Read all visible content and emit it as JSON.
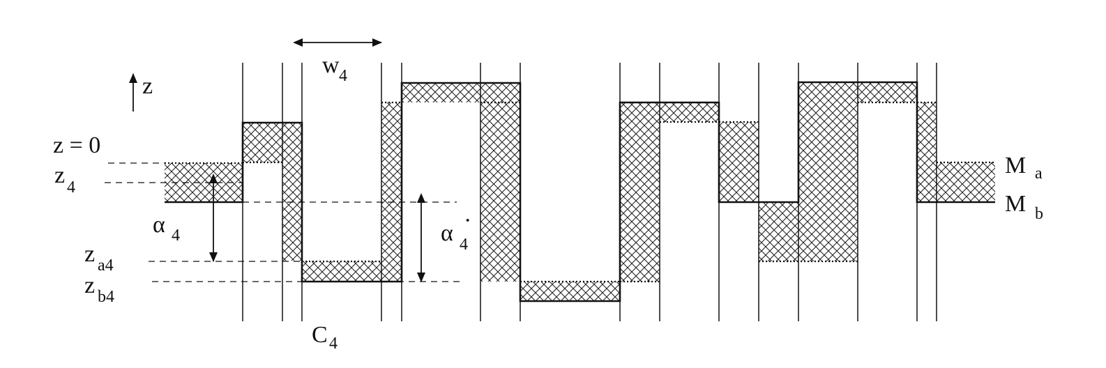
{
  "labels": {
    "z_axis": "z",
    "z_zero": "z = 0",
    "z4": "z",
    "z4_sub": "4",
    "alpha4": "α",
    "alpha4_sub": "4",
    "za4": "z",
    "za4_sub": "a4",
    "zb4": "z",
    "zb4_sub": "b4",
    "c4": "C",
    "c4_sub": "4",
    "w4": "w",
    "w4_sub": "4",
    "alpha4_prime": "α",
    "alpha4_prime_sub": "4",
    "alpha4_prime_dot": "·",
    "ma": "M",
    "ma_sub": "a",
    "mb": "M",
    "mb_sub": "b"
  },
  "colors": {
    "line": "#111111",
    "hatch": "#222222",
    "background": "#ffffff"
  }
}
